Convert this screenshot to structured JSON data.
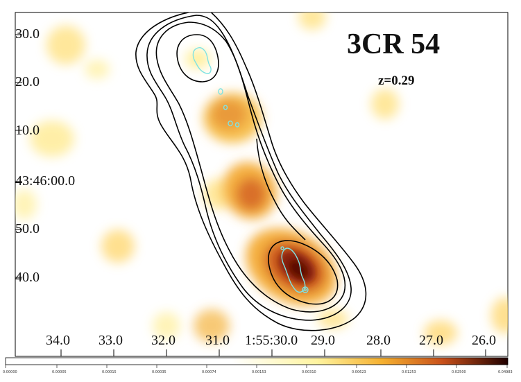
{
  "figure": {
    "title": "3CR 54",
    "redshift_label": "z=0.29"
  },
  "axes": {
    "y_ticks": [
      "30.0",
      "20.0",
      "10.0",
      "43:46:00.0",
      "50.0",
      "40.0"
    ],
    "x_ticks": [
      "34.0",
      "33.0",
      "32.0",
      "31.0",
      "1:55:30.0",
      "29.0",
      "28.0",
      "27.0",
      "26.0"
    ]
  },
  "colorbar": {
    "labels": [
      "0.00000",
      "0.00005",
      "0.00015",
      "0.00035",
      "0.00074",
      "0.00153",
      "0.00310",
      "0.00623",
      "0.01253",
      "0.02500",
      "0.04983"
    ],
    "colors": {
      "low": "#ffffff",
      "mid1": "#fff4a0",
      "mid2": "#f5b030",
      "mid3": "#c8501a",
      "high": "#3a0000"
    }
  },
  "styles": {
    "radio_contour_color": "#000000",
    "xray_contour_color": "#7fe3e3"
  }
}
